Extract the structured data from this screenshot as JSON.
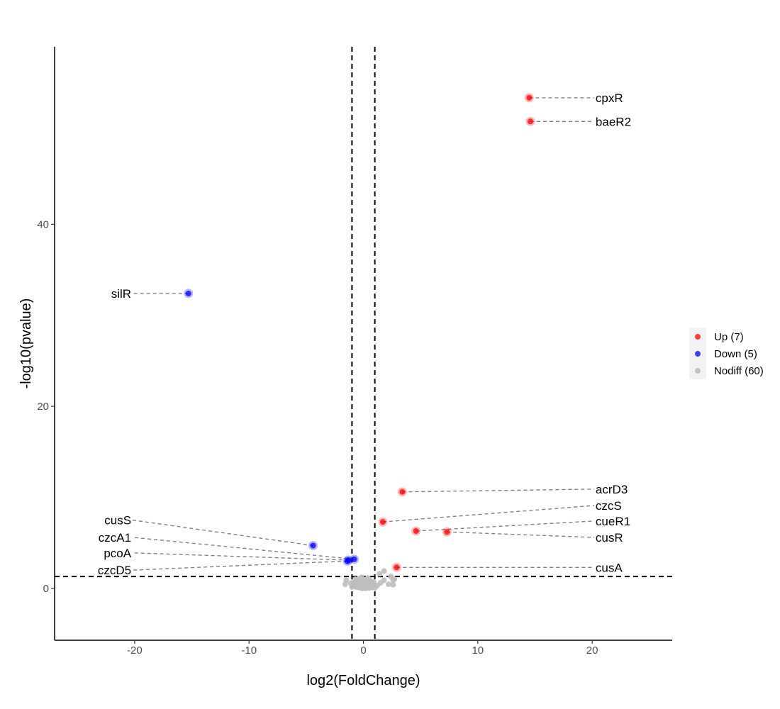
{
  "chart_data": {
    "type": "scatter",
    "xlabel": "log2(FoldChange)",
    "ylabel": "-log10(pvalue)",
    "xlim": [
      -27,
      27
    ],
    "ylim": [
      -5.7,
      59.5
    ],
    "x_ticks": [
      -20,
      -10,
      0,
      10,
      20
    ],
    "y_ticks": [
      0,
      20,
      40
    ],
    "grid": false,
    "legend_position": "right",
    "thresholds": {
      "x": [
        -1,
        1
      ],
      "y": 1.3
    },
    "colors": {
      "up": "#ff0000",
      "down": "#0000ff",
      "nodiff": "#bebebe"
    },
    "series": [
      {
        "name": "Up (7)",
        "key": "up",
        "points": [
          {
            "x": 14.5,
            "y": 53.9,
            "label": "cpxR"
          },
          {
            "x": 14.6,
            "y": 51.3,
            "label": "baeR2"
          },
          {
            "x": 3.4,
            "y": 10.6,
            "label": "acrD3"
          },
          {
            "x": 1.7,
            "y": 7.3,
            "label": "czcS"
          },
          {
            "x": 4.6,
            "y": 6.3,
            "label": "cueR1"
          },
          {
            "x": 7.3,
            "y": 6.2,
            "label": "cusR"
          },
          {
            "x": 2.9,
            "y": 2.3,
            "label": "cusA"
          }
        ]
      },
      {
        "name": "Down (5)",
        "key": "down",
        "points": [
          {
            "x": -15.3,
            "y": 32.4,
            "label": "silR"
          },
          {
            "x": -4.4,
            "y": 4.7,
            "label": "cusS"
          },
          {
            "x": -0.8,
            "y": 3.2,
            "label": "czcA1"
          },
          {
            "x": -1.3,
            "y": 3.1,
            "label": "pcoA"
          },
          {
            "x": -1.4,
            "y": 3.0,
            "label": "czcD5"
          }
        ]
      },
      {
        "name": "Nodiff (60)",
        "key": "nodiff",
        "points": [
          {
            "x": -1.6,
            "y": 0.45
          },
          {
            "x": -0.9,
            "y": 0.7
          },
          {
            "x": -0.8,
            "y": 0.3
          },
          {
            "x": -0.7,
            "y": 1.0
          },
          {
            "x": -0.6,
            "y": 0.5
          },
          {
            "x": -0.55,
            "y": 0.2
          },
          {
            "x": -0.5,
            "y": 0.85
          },
          {
            "x": -0.45,
            "y": 0.4
          },
          {
            "x": -0.4,
            "y": 0.1
          },
          {
            "x": -0.35,
            "y": 0.6
          },
          {
            "x": -0.3,
            "y": 0.3
          },
          {
            "x": -0.3,
            "y": 1.1
          },
          {
            "x": -0.25,
            "y": 0.05
          },
          {
            "x": -0.2,
            "y": 0.5
          },
          {
            "x": -0.2,
            "y": 0.2
          },
          {
            "x": -0.15,
            "y": 0.8
          },
          {
            "x": -0.1,
            "y": 0.35
          },
          {
            "x": -0.1,
            "y": 0.0
          },
          {
            "x": -0.05,
            "y": 0.15
          },
          {
            "x": 0.0,
            "y": 0.6
          },
          {
            "x": 0.0,
            "y": 0.25
          },
          {
            "x": 0.05,
            "y": 0.05
          },
          {
            "x": 0.1,
            "y": 0.4
          },
          {
            "x": 0.1,
            "y": 0.9
          },
          {
            "x": 0.15,
            "y": 0.15
          },
          {
            "x": 0.2,
            "y": 0.55
          },
          {
            "x": 0.2,
            "y": 0.0
          },
          {
            "x": 0.25,
            "y": 0.3
          },
          {
            "x": 0.3,
            "y": 0.7
          },
          {
            "x": 0.3,
            "y": 0.1
          },
          {
            "x": 0.35,
            "y": 0.45
          },
          {
            "x": 0.4,
            "y": 0.2
          },
          {
            "x": 0.45,
            "y": 1.0
          },
          {
            "x": 0.5,
            "y": 0.35
          },
          {
            "x": 0.5,
            "y": 0.05
          },
          {
            "x": 0.55,
            "y": 0.6
          },
          {
            "x": 0.6,
            "y": 0.25
          },
          {
            "x": 0.65,
            "y": 0.8
          },
          {
            "x": 0.7,
            "y": 0.4
          },
          {
            "x": 0.75,
            "y": 0.1
          },
          {
            "x": 0.8,
            "y": 0.5
          },
          {
            "x": 0.85,
            "y": 0.2
          },
          {
            "x": 0.9,
            "y": 0.7
          },
          {
            "x": -1.0,
            "y": 0.15
          },
          {
            "x": -1.1,
            "y": 0.55
          },
          {
            "x": -0.65,
            "y": 0.15
          },
          {
            "x": -0.15,
            "y": 1.2
          },
          {
            "x": 0.4,
            "y": 1.15
          },
          {
            "x": 1.2,
            "y": 0.3
          },
          {
            "x": 1.5,
            "y": 0.6
          },
          {
            "x": 1.8,
            "y": 0.9
          },
          {
            "x": 2.2,
            "y": 0.45
          },
          {
            "x": 2.4,
            "y": 1.3
          },
          {
            "x": 2.6,
            "y": 0.4
          },
          {
            "x": 1.0,
            "y": 0.05
          },
          {
            "x": -1.5,
            "y": 0.9
          },
          {
            "x": 1.4,
            "y": 1.6
          },
          {
            "x": 1.8,
            "y": 1.9
          },
          {
            "x": 2.7,
            "y": 1.0
          },
          {
            "x": 2.6,
            "y": 0.9
          }
        ]
      }
    ],
    "label_positions": {
      "cpxR": {
        "x": 20.3,
        "y": 53.9
      },
      "baeR2": {
        "x": 20.3,
        "y": 51.3
      },
      "acrD3": {
        "x": 20.3,
        "y": 10.9
      },
      "czcS": {
        "x": 20.3,
        "y": 9.1
      },
      "cueR1": {
        "x": 20.3,
        "y": 7.4
      },
      "cusR": {
        "x": 20.3,
        "y": 5.6
      },
      "cusA": {
        "x": 20.3,
        "y": 2.3
      },
      "silR": {
        "x": -20.3,
        "y": 32.4
      },
      "cusS": {
        "x": -20.3,
        "y": 7.5
      },
      "czcA1": {
        "x": -20.3,
        "y": 5.6
      },
      "pcoA": {
        "x": -20.3,
        "y": 3.9
      },
      "czcD5": {
        "x": -20.3,
        "y": 2.0
      }
    }
  }
}
